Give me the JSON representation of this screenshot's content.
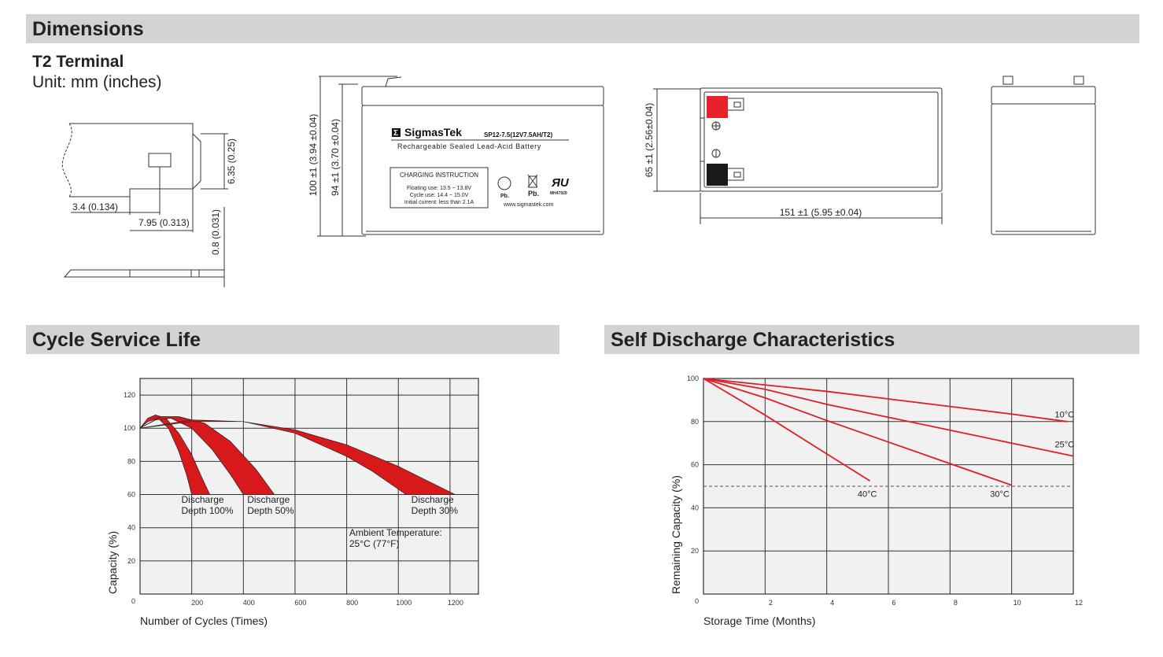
{
  "sections": {
    "dimensions": "Dimensions",
    "cycle_life": "Cycle Service Life",
    "self_discharge": "Self Discharge Characteristics"
  },
  "terminal": {
    "title": "T2 Terminal",
    "unit": "Unit: mm (inches)",
    "dim_height": "6.35 (0.25)",
    "dim_left": "3.4 (0.134)",
    "dim_width": "7.95 (0.313)",
    "dim_thickness": "0.8 (0.031)"
  },
  "battery": {
    "brand": "SigmasTek",
    "model": "SP12-7.5(12V7.5AH/T2)",
    "description": "Rechargeable Sealed Lead-Acid Battery",
    "charging_title": "CHARGING INSTRUCTION",
    "charging_lines": [
      "Floating use: 13.5 ~ 13.8V",
      "Cycle use: 14.4 ~ 15.0V",
      "Initial current: less than 2.1A"
    ],
    "recycle_label": "Pb.",
    "bin_label": "Pb.",
    "ul_code": "MH47929",
    "website": "www.sigmastek.com",
    "dim_total_height": "100 ±1 (3.94 ±0.04)",
    "dim_case_height": "94 ±1 (3.70 ±0.04)",
    "dim_width": "65 ±1 (2.56±0.04)",
    "dim_length": "151 ±1 (5.95 ±0.04)",
    "terminal_colors": {
      "positive": "#e8202a",
      "negative": "#1a1a1a"
    }
  },
  "chart_data": [
    {
      "type": "area",
      "title": "Cycle Service Life",
      "xlabel": "Number of Cycles (Times)",
      "ylabel": "Capacity (%)",
      "xticks": [
        "200",
        "400",
        "600",
        "800",
        "1000",
        "1200"
      ],
      "yticks": [
        "0",
        "20",
        "40",
        "60",
        "80",
        "100",
        "120"
      ],
      "xlim": [
        0,
        1310
      ],
      "ylim": [
        0,
        130
      ],
      "grid": true,
      "fill_color": "#d7191c",
      "series": [
        {
          "name": "Discharge Depth 100%",
          "upper": [
            [
              0,
              100
            ],
            [
              30,
              106
            ],
            [
              60,
              108
            ],
            [
              100,
              106
            ],
            [
              150,
              97
            ],
            [
              200,
              84
            ],
            [
              240,
              70
            ],
            [
              270,
              60
            ]
          ],
          "lower": [
            [
              0,
              100
            ],
            [
              30,
              104
            ],
            [
              70,
              106
            ],
            [
              110,
              100
            ],
            [
              150,
              86
            ],
            [
              180,
              72
            ],
            [
              200,
              60
            ]
          ]
        },
        {
          "name": "Discharge Depth 50%",
          "upper": [
            [
              0,
              100
            ],
            [
              80,
              107
            ],
            [
              150,
              107
            ],
            [
              250,
              103
            ],
            [
              350,
              92
            ],
            [
              450,
              75
            ],
            [
              520,
              60
            ]
          ],
          "lower": [
            [
              0,
              100
            ],
            [
              60,
              105
            ],
            [
              120,
              106
            ],
            [
              200,
              100
            ],
            [
              280,
              87
            ],
            [
              350,
              72
            ],
            [
              400,
              60
            ]
          ]
        },
        {
          "name": "Discharge Depth 30%",
          "upper": [
            [
              0,
              100
            ],
            [
              200,
              105
            ],
            [
              400,
              104
            ],
            [
              600,
              99
            ],
            [
              800,
              90
            ],
            [
              1000,
              77
            ],
            [
              1220,
              60
            ]
          ],
          "lower": [
            [
              0,
              100
            ],
            [
              200,
              104
            ],
            [
              400,
              104
            ],
            [
              600,
              97
            ],
            [
              800,
              83
            ],
            [
              900,
              74
            ],
            [
              1030,
              60
            ]
          ]
        }
      ],
      "labels": [
        {
          "lines": [
            "Discharge",
            "Depth 100%"
          ],
          "at": [
            160,
            55
          ]
        },
        {
          "lines": [
            "Discharge",
            "Depth 50%"
          ],
          "at": [
            415,
            55
          ]
        },
        {
          "lines": [
            "Discharge",
            "Depth 30%"
          ],
          "at": [
            1050,
            55
          ]
        },
        {
          "lines": [
            "Ambient Temperature:",
            "25°C (77°F)"
          ],
          "at": [
            810,
            35
          ]
        }
      ]
    },
    {
      "type": "line",
      "title": "Self Discharge Characteristics",
      "xlabel": "Storage Time (Months)",
      "ylabel": "Remaining Capacity (%)",
      "xticks": [
        "2",
        "4",
        "6",
        "8",
        "10",
        "12"
      ],
      "yticks": [
        "0",
        "20",
        "40",
        "60",
        "80",
        "100"
      ],
      "xlim": [
        0,
        12
      ],
      "ylim": [
        0,
        100
      ],
      "grid": true,
      "line_color": "#e01e26",
      "reference_line": 50,
      "series": [
        {
          "name": "10°C",
          "points": [
            [
              0,
              100
            ],
            [
              2,
              97
            ],
            [
              4,
              94
            ],
            [
              6,
              90.5
            ],
            [
              8,
              87
            ],
            [
              10,
              83.5
            ],
            [
              11.8,
              80
            ]
          ],
          "label_at": [
            11.4,
            82
          ]
        },
        {
          "name": "25°C",
          "points": [
            [
              0,
              100
            ],
            [
              2,
              95
            ],
            [
              4,
              88
            ],
            [
              6,
              82
            ],
            [
              8,
              76
            ],
            [
              10,
              70
            ],
            [
              12,
              64
            ]
          ],
          "label_at": [
            11.4,
            68
          ]
        },
        {
          "name": "30°C",
          "points": [
            [
              0,
              100
            ],
            [
              2,
              91
            ],
            [
              4,
              80.5
            ],
            [
              6,
              70.5
            ],
            [
              8,
              60.5
            ],
            [
              10,
              50.5
            ]
          ],
          "label_at": [
            9.3,
            45
          ]
        },
        {
          "name": "40°C",
          "points": [
            [
              0,
              100
            ],
            [
              2,
              83
            ],
            [
              4,
              65
            ],
            [
              5.4,
              52.5
            ]
          ],
          "label_at": [
            5.0,
            45
          ]
        }
      ]
    }
  ]
}
